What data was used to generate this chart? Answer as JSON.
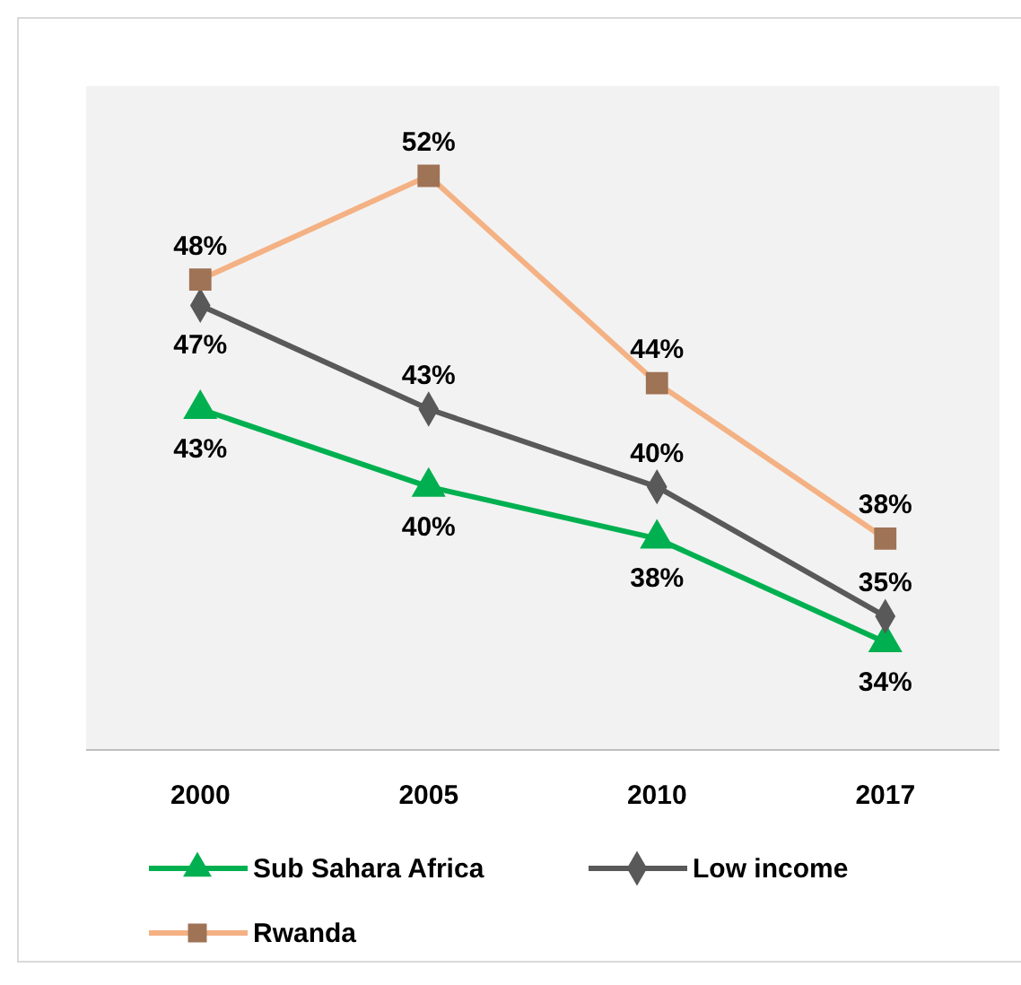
{
  "chart_data": {
    "type": "line",
    "categories": [
      "2000",
      "2005",
      "2010",
      "2017"
    ],
    "legend": "bottom",
    "tick_labels": "x",
    "series": [
      {
        "name": "Sub Sahara Africa",
        "color": "#00b050",
        "marker": "triangle",
        "values": [
          43,
          40,
          38,
          34
        ],
        "value_labels": [
          "43%",
          "40%",
          "38%",
          "34%"
        ]
      },
      {
        "name": "Low income",
        "color": "#595959",
        "marker": "diamond",
        "values": [
          47,
          43,
          40,
          35
        ],
        "value_labels": [
          "47%",
          "43%",
          "40%",
          "35%"
        ]
      },
      {
        "name": "Rwanda",
        "color": "#f4b183",
        "marker": "square",
        "values": [
          48,
          52,
          44,
          38
        ],
        "value_labels": [
          "48%",
          "52%",
          "44%",
          "38%"
        ]
      }
    ]
  }
}
